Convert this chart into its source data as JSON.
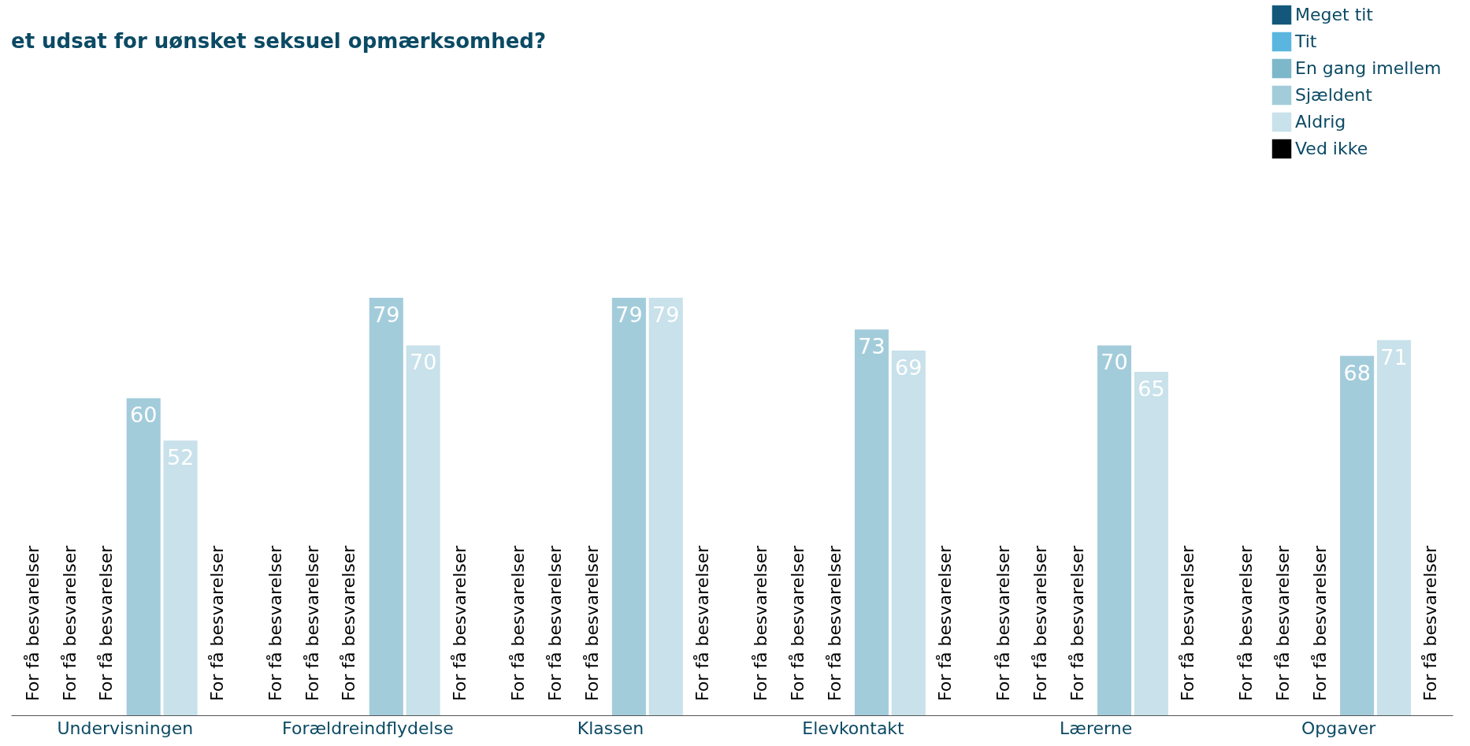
{
  "chart_data": {
    "type": "bar",
    "title": "et udsat for uønsket seksuel opmærksomhed?",
    "categories": [
      "Undervisningen",
      "Forældreindflydelse",
      "Klassen",
      "Elevkontakt",
      "Lærerne",
      "Opgaver"
    ],
    "series": [
      {
        "name": "Meget tit",
        "color": "#13587a",
        "values": [
          null,
          null,
          null,
          null,
          null,
          null
        ],
        "value_labels": [
          "For få besvarelser",
          "For få besvarelser",
          "For få besvarelser",
          "For få besvarelser",
          "For få besvarelser",
          "For få besvarelser"
        ]
      },
      {
        "name": "Tit",
        "color": "#5ab6de",
        "values": [
          null,
          null,
          null,
          null,
          null,
          null
        ],
        "value_labels": [
          "For få besvarelser",
          "For få besvarelser",
          "For få besvarelser",
          "For få besvarelser",
          "For få besvarelser",
          "For få besvarelser"
        ]
      },
      {
        "name": "En gang imellem",
        "color": "#7db7ca",
        "values": [
          null,
          null,
          null,
          null,
          null,
          null
        ],
        "value_labels": [
          "For få besvarelser",
          "For få besvarelser",
          "For få besvarelser",
          "For få besvarelser",
          "For få besvarelser",
          "For få besvarelser"
        ]
      },
      {
        "name": "Sjældent",
        "color": "#a3ccdb",
        "values": [
          60,
          79,
          79,
          73,
          70,
          68
        ],
        "value_labels": [
          "60",
          "79",
          "79",
          "73",
          "70",
          "68"
        ]
      },
      {
        "name": "Aldrig",
        "color": "#c8e1ea",
        "values": [
          52,
          70,
          79,
          69,
          65,
          71
        ],
        "value_labels": [
          "52",
          "70",
          "79",
          "69",
          "65",
          "71"
        ]
      },
      {
        "name": "Ved ikke",
        "color": "#000000",
        "values": [
          null,
          null,
          null,
          null,
          null,
          null
        ],
        "value_labels": [
          "For få besvarelser",
          "For få besvarelser",
          "For få besvarelser",
          "For få besvarelser",
          "For få besvarelser",
          "For få besvarelser"
        ]
      }
    ],
    "legend": "top right"
  }
}
